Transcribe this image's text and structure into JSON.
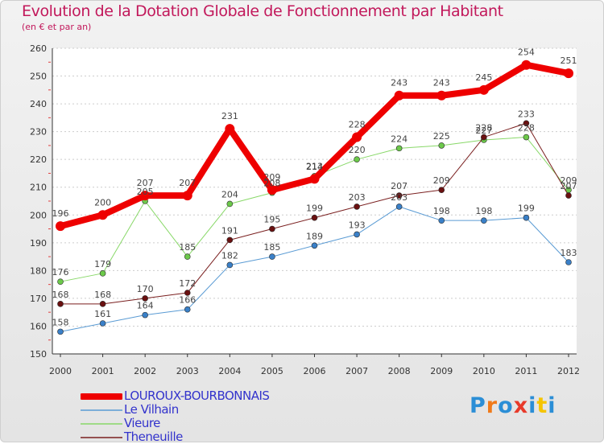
{
  "header": {
    "title": "Evolution de la Dotation Globale de Fonctionnement par Habitant",
    "subtitle": "(en € et par an)"
  },
  "chart_data": {
    "type": "line",
    "title": "Evolution de la Dotation Globale de Fonctionnement par Habitant",
    "subtitle": "(en € et par an)",
    "xlabel": "",
    "ylabel": "",
    "x": [
      "2000",
      "2001",
      "2002",
      "2003",
      "2004",
      "2005",
      "2006",
      "2007",
      "2008",
      "2009",
      "2010",
      "2011",
      "2012"
    ],
    "ylim": [
      150,
      260
    ],
    "yticks": [
      150,
      160,
      170,
      180,
      190,
      200,
      210,
      220,
      230,
      240,
      250,
      260
    ],
    "grid": "horizontal dashed",
    "series": [
      {
        "name": "Le Vilhain",
        "color": "#5a9bd4",
        "marker": "#3a80c8",
        "width": 1,
        "values": [
          158,
          161,
          164,
          166,
          182,
          185,
          189,
          193,
          203,
          198,
          198,
          199,
          183
        ],
        "labels": [
          "158",
          "161",
          "164",
          "166",
          "182",
          "185",
          "189",
          "193",
          "203",
          "198",
          "198",
          "199",
          "183"
        ]
      },
      {
        "name": "Vieure",
        "color": "#88d868",
        "marker": "#6cc94a",
        "width": 1,
        "values": [
          176,
          179,
          205,
          185,
          204,
          208,
          214,
          220,
          224,
          225,
          227,
          228,
          209
        ],
        "labels": [
          "176",
          "179",
          "205",
          "185",
          "204",
          "208",
          "214",
          "220",
          "224",
          "225",
          "227",
          "228",
          "209"
        ]
      },
      {
        "name": "Theneuille",
        "color": "#7a1f1f",
        "marker": "#6a1010",
        "width": 1,
        "values": [
          168,
          168,
          170,
          172,
          191,
          195,
          199,
          203,
          207,
          209,
          228,
          233,
          207
        ],
        "labels": [
          "168",
          "168",
          "170",
          "172",
          "191",
          "195",
          "199",
          "203",
          "207",
          "209",
          "228",
          "233",
          "207"
        ]
      },
      {
        "name": "LOUROUX-BOURBONNAIS",
        "color": "#ee0000",
        "marker": "#ee0000",
        "width": 8,
        "values": [
          196,
          200,
          207,
          207,
          231,
          209,
          213,
          228,
          243,
          243,
          245,
          254,
          251
        ],
        "labels": [
          "196",
          "200",
          "207",
          "207",
          "231",
          "209",
          "213",
          "228",
          "243",
          "243",
          "245",
          "254",
          "251"
        ]
      }
    ]
  },
  "legend": [
    {
      "label": "LOUROUX-BOURBONNAIS",
      "color": "#ee0000",
      "thick": true
    },
    {
      "label": "Le Vilhain",
      "color": "#5a9bd4",
      "thick": false
    },
    {
      "label": "Vieure",
      "color": "#88d868",
      "thick": false
    },
    {
      "label": "Theneuille",
      "color": "#7a1f1f",
      "thick": false
    }
  ],
  "logo": {
    "text": "Proxiti",
    "letters": [
      "P",
      "r",
      "o",
      "x",
      "i",
      "t",
      "i"
    ],
    "colors": [
      "#2b8ed6",
      "#f07a1a",
      "#2b8ed6",
      "#e83a2a",
      "#2b8ed6",
      "#f5c400",
      "#2b8ed6"
    ]
  }
}
